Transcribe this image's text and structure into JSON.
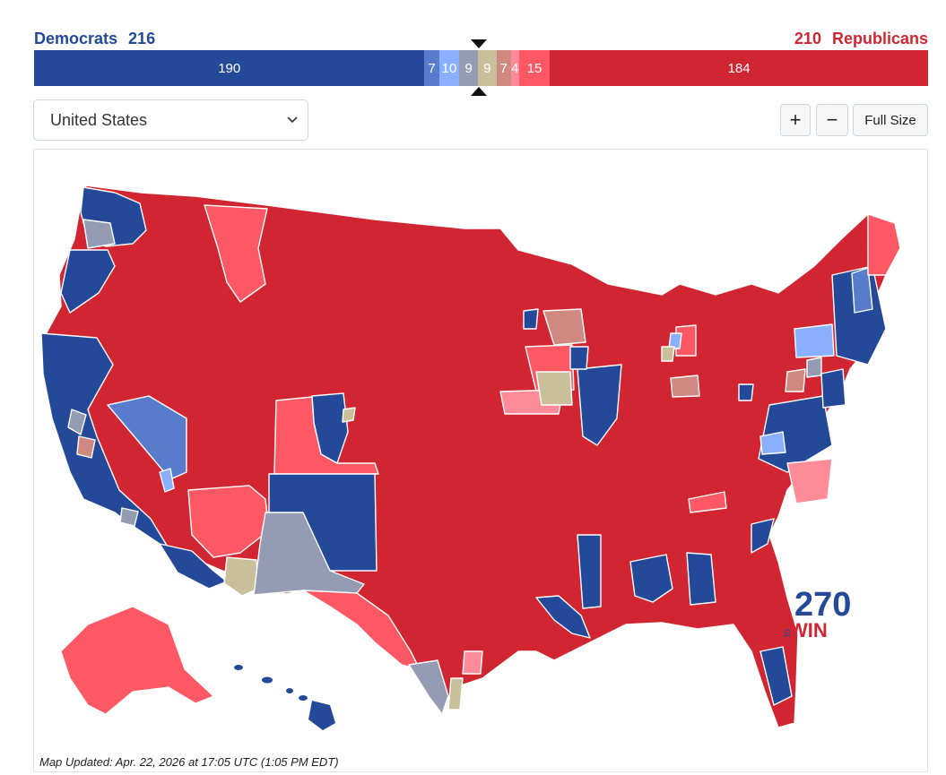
{
  "header": {
    "dem_label": "Democrats",
    "dem_total": "216",
    "rep_label": "Republicans",
    "rep_total": "210"
  },
  "bar_segments": [
    {
      "name": "safe-dem",
      "label": "190",
      "seats": 190,
      "color": "#244999"
    },
    {
      "name": "likely-dem",
      "label": "7",
      "seats": 7,
      "color": "#577ccc"
    },
    {
      "name": "lean-dem",
      "label": "10",
      "seats": 10,
      "color": "#8aafff"
    },
    {
      "name": "tilt-dem",
      "label": "9",
      "seats": 9,
      "color": "#949bb3"
    },
    {
      "name": "toss-up",
      "label": "9",
      "seats": 9,
      "color": "#c9c09b"
    },
    {
      "name": "tilt-rep",
      "label": "7",
      "seats": 7,
      "color": "#cf8980"
    },
    {
      "name": "lean-rep",
      "label": "4",
      "seats": 4,
      "color": "#ff8b98"
    },
    {
      "name": "likely-rep",
      "label": "15",
      "seats": 15,
      "color": "#ff5865"
    },
    {
      "name": "safe-rep",
      "label": "184",
      "seats": 184,
      "color": "#d22532"
    }
  ],
  "controls": {
    "region_value": "United States",
    "zoom_in_label": "+",
    "zoom_out_label": "−",
    "full_size_label": "Full Size"
  },
  "map": {
    "logo_top": "270",
    "logo_small": "to",
    "logo_win": "WIN",
    "updated_text": "Map Updated: Apr. 22, 2026 at 17:05 UTC (1:05 PM EDT)"
  }
}
